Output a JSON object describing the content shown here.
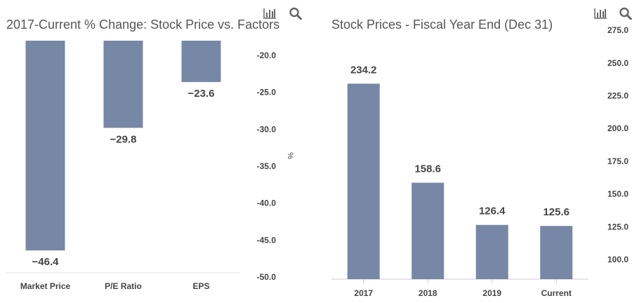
{
  "colors": {
    "bar": "#7788a6",
    "axis_text": "#444444",
    "label_text": "#444444",
    "title_text": "#555555",
    "icon": "#666666"
  },
  "icons": [
    "bar-chart-icon",
    "search-icon"
  ],
  "chart_data": [
    {
      "type": "bar",
      "title": "2017-Current % Change: Stock Price vs. Factors",
      "categories": [
        "Market Price",
        "P/E Ratio",
        "EPS"
      ],
      "values": [
        -46.4,
        -29.8,
        -23.6
      ],
      "value_labels": [
        "−46.4",
        "−29.8",
        "−23.6"
      ],
      "ylabel": "%",
      "ylim": [
        -50,
        -18
      ],
      "yticks": [
        "-20.0",
        "-25.0",
        "-30.0",
        "-35.0",
        "-40.0",
        "-45.0",
        "-50.0"
      ],
      "ytick_values": [
        -20,
        -25,
        -30,
        -35,
        -40,
        -45,
        -50
      ],
      "y_axis_position": "right",
      "grid": false,
      "legend": "none"
    },
    {
      "type": "bar",
      "title": "Stock Prices - Fiscal Year End (Dec 31)",
      "categories": [
        "2017",
        "2018",
        "2019",
        "Current"
      ],
      "values": [
        234.2,
        158.6,
        126.4,
        125.6
      ],
      "value_labels": [
        "234.2",
        "158.6",
        "126.4",
        "125.6"
      ],
      "ylabel": "",
      "ylim": [
        85,
        282
      ],
      "yticks": [
        "275.0",
        "250.0",
        "225.0",
        "200.0",
        "175.0",
        "150.0",
        "125.0",
        "100.0"
      ],
      "ytick_values": [
        275,
        250,
        225,
        200,
        175,
        150,
        125,
        100
      ],
      "y_axis_position": "right",
      "grid": false,
      "legend": "none"
    }
  ]
}
